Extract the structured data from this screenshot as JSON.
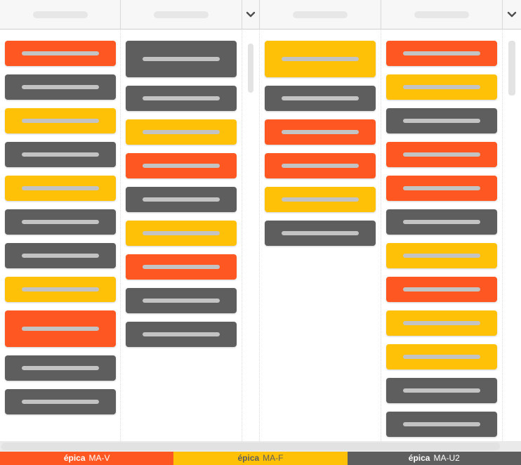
{
  "board": {
    "epic_colors": {
      "MA-V": "#FF5722",
      "MA-F": "#FFC107",
      "MA-U2": "#5E5E5E"
    },
    "card_placeholder_color": "#C3C3C3",
    "header_placeholder_color": "#E7E7E7",
    "columns": [
      {
        "title_placeholder": true,
        "cards": [
          {
            "epic": "MA-V",
            "size": "normal"
          },
          {
            "epic": "MA-U2",
            "size": "normal"
          },
          {
            "epic": "MA-F",
            "size": "normal"
          },
          {
            "epic": "MA-U2",
            "size": "normal"
          },
          {
            "epic": "MA-F",
            "size": "normal"
          },
          {
            "epic": "MA-U2",
            "size": "normal"
          },
          {
            "epic": "MA-U2",
            "size": "normal"
          },
          {
            "epic": "MA-F",
            "size": "normal"
          },
          {
            "epic": "MA-V",
            "size": "tall"
          },
          {
            "epic": "MA-U2",
            "size": "normal"
          },
          {
            "epic": "MA-U2",
            "size": "normal"
          }
        ]
      },
      {
        "title_placeholder": true,
        "cards": [
          {
            "epic": "MA-U2",
            "size": "tall"
          },
          {
            "epic": "MA-U2",
            "size": "normal"
          },
          {
            "epic": "MA-F",
            "size": "normal"
          },
          {
            "epic": "MA-V",
            "size": "normal"
          },
          {
            "epic": "MA-U2",
            "size": "normal"
          },
          {
            "epic": "MA-F",
            "size": "normal"
          },
          {
            "epic": "MA-V",
            "size": "normal"
          },
          {
            "epic": "MA-U2",
            "size": "normal"
          },
          {
            "epic": "MA-U2",
            "size": "normal"
          }
        ]
      },
      {
        "title_placeholder": true,
        "cards": [
          {
            "epic": "MA-F",
            "size": "tall"
          },
          {
            "epic": "MA-U2",
            "size": "normal"
          },
          {
            "epic": "MA-V",
            "size": "normal"
          },
          {
            "epic": "MA-V",
            "size": "normal"
          },
          {
            "epic": "MA-F",
            "size": "normal"
          },
          {
            "epic": "MA-U2",
            "size": "normal"
          }
        ]
      },
      {
        "title_placeholder": true,
        "cards": [
          {
            "epic": "MA-V",
            "size": "normal"
          },
          {
            "epic": "MA-F",
            "size": "normal"
          },
          {
            "epic": "MA-U2",
            "size": "normal"
          },
          {
            "epic": "MA-V",
            "size": "normal"
          },
          {
            "epic": "MA-V",
            "size": "normal"
          },
          {
            "epic": "MA-U2",
            "size": "normal"
          },
          {
            "epic": "MA-F",
            "size": "normal"
          },
          {
            "epic": "MA-V",
            "size": "normal"
          },
          {
            "epic": "MA-F",
            "size": "normal"
          },
          {
            "epic": "MA-F",
            "size": "normal"
          },
          {
            "epic": "MA-U2",
            "size": "normal"
          },
          {
            "epic": "MA-U2",
            "size": "normal"
          }
        ]
      }
    ],
    "collapsed_strips": [
      {
        "icon": "chevron-down-icon",
        "thumb": true
      },
      {
        "icon": "chevron-down-icon",
        "thumb": true
      }
    ]
  },
  "legend": {
    "items": [
      {
        "prefix": "épica",
        "code": "MA-V",
        "color": "#FF5722",
        "text_color": "#FFFFFF"
      },
      {
        "prefix": "épica",
        "code": "MA-F",
        "color": "#FFC107",
        "text_color": "#5E5E5E"
      },
      {
        "prefix": "épica",
        "code": "MA-U2",
        "color": "#5E5E5E",
        "text_color": "#FFFFFF"
      }
    ]
  }
}
